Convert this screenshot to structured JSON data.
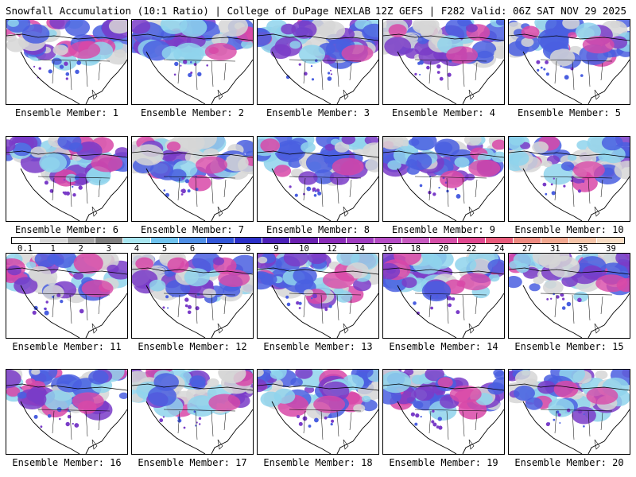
{
  "header": {
    "left": "Snowfall Accumulation (10:1 Ratio) | College of DuPage NEXLAB",
    "right": "12Z GEFS | F282 Valid: 06Z SAT NOV 29 2025"
  },
  "members": [
    "Ensemble Member: 1",
    "Ensemble Member: 2",
    "Ensemble Member: 3",
    "Ensemble Member: 4",
    "Ensemble Member: 5",
    "Ensemble Member: 6",
    "Ensemble Member: 7",
    "Ensemble Member: 8",
    "Ensemble Member: 9",
    "Ensemble Member: 10",
    "Ensemble Member: 11",
    "Ensemble Member: 12",
    "Ensemble Member: 13",
    "Ensemble Member: 14",
    "Ensemble Member: 15",
    "Ensemble Member: 16",
    "Ensemble Member: 17",
    "Ensemble Member: 18",
    "Ensemble Member: 19",
    "Ensemble Member: 20"
  ],
  "scale": {
    "labels": [
      "0.1",
      "1",
      "2",
      "3",
      "4",
      "5",
      "6",
      "7",
      "8",
      "9",
      "10",
      "12",
      "14",
      "16",
      "18",
      "20",
      "22",
      "24",
      "27",
      "31",
      "35",
      "39"
    ],
    "colors": [
      "#ffffff",
      "#d9d9d9",
      "#a6a6a6",
      "#7f7f7f",
      "#a8e6f0",
      "#6fc3ee",
      "#4f8fe6",
      "#3256d8",
      "#2a2ec8",
      "#4b1fb8",
      "#6a1fb0",
      "#8a2bb8",
      "#a03cc0",
      "#b54bc4",
      "#c85ac0",
      "#d64fa8",
      "#e0488f",
      "#e85a7a",
      "#ee8a80",
      "#f2a890",
      "#f5c4a8",
      "#f8dcc4"
    ]
  },
  "colors": {
    "snow_light": "#d6d6d6",
    "snow_med": "#8fd3ec",
    "snow_blue": "#4a5fe0",
    "snow_purple": "#7a3cc8",
    "snow_pink": "#d848a8",
    "map_outline": "#000000"
  }
}
